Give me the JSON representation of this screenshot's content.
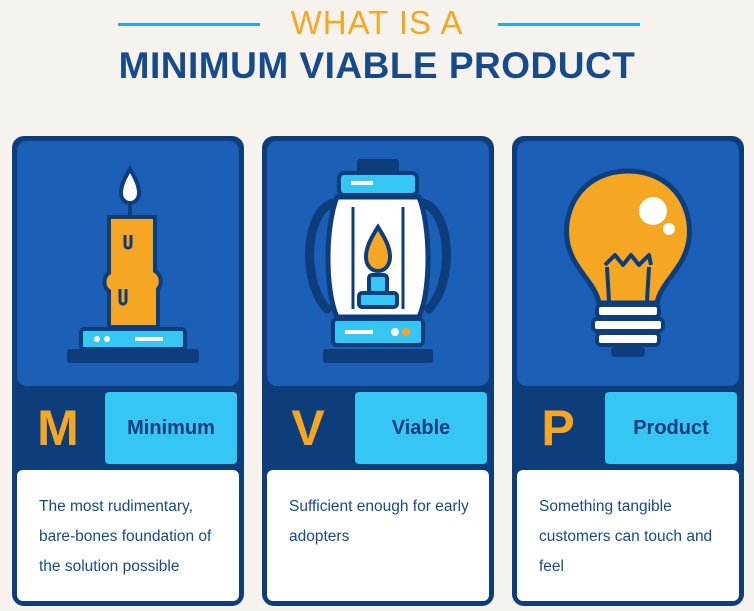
{
  "header": {
    "kicker": "WHAT IS A",
    "title": "MINIMUM VIABLE PRODUCT"
  },
  "colors": {
    "background": "#f6f3ee",
    "card_frame": "#0e3d7c",
    "art_panel": "#1b5fb7",
    "accent_orange": "#f5a623",
    "accent_cyan": "#35c6f4",
    "rule_blue": "#2aa7ea",
    "text_navy": "#174a8b"
  },
  "cards": [
    {
      "letter": "M",
      "word": "Minimum",
      "description": "The most rudimentary, bare-bones foundation of the solution possible",
      "icon": "candle-icon"
    },
    {
      "letter": "V",
      "word": "Viable",
      "description": "Sufficient enough for early adopters",
      "icon": "lantern-icon"
    },
    {
      "letter": "P",
      "word": "Product",
      "description": "Something tangible customers can touch and feel",
      "icon": "lightbulb-icon"
    }
  ]
}
